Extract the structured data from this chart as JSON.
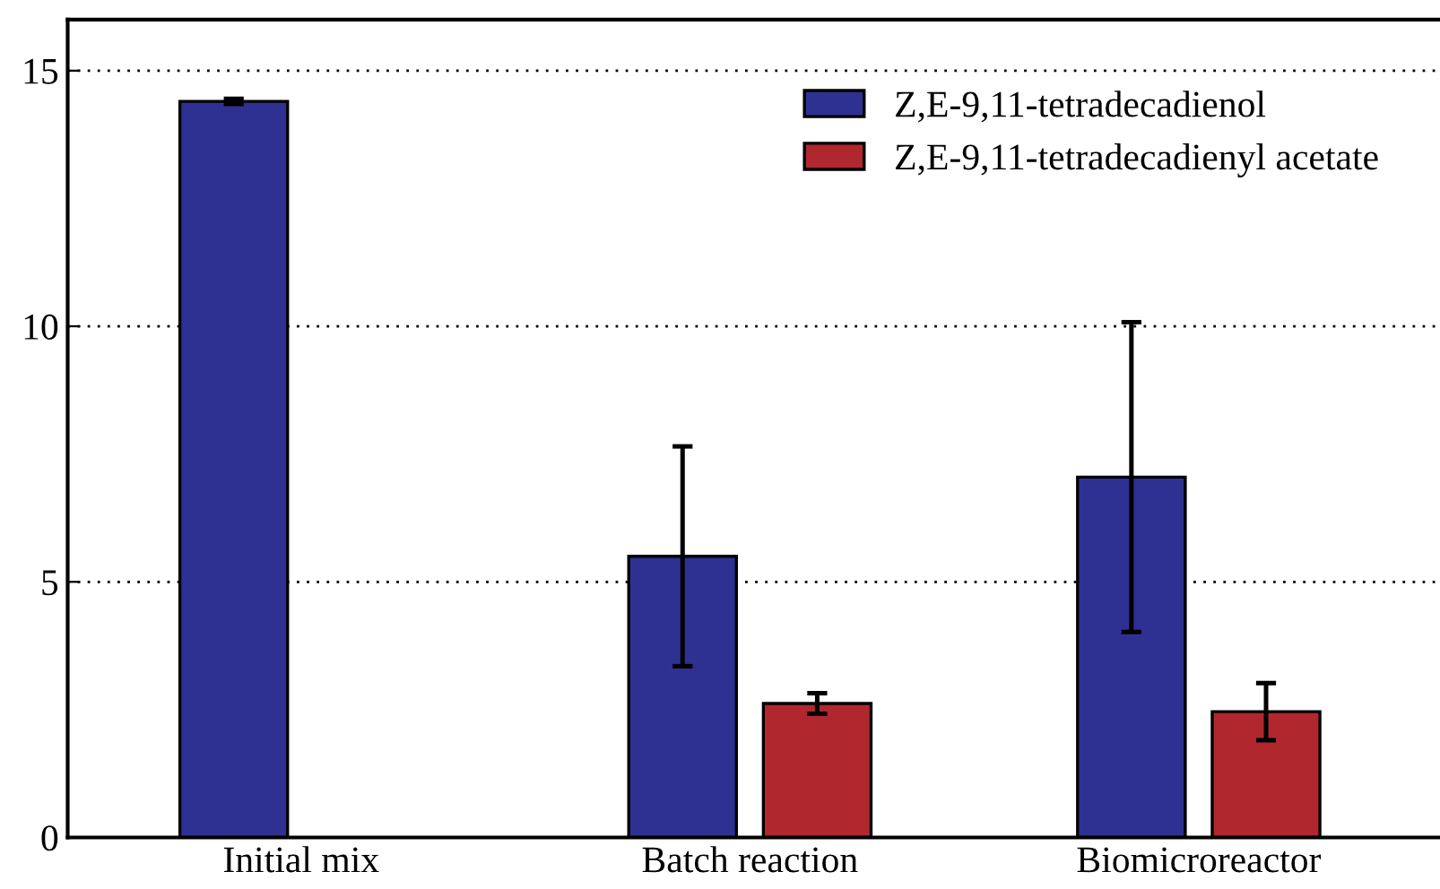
{
  "chart_data": {
    "type": "bar",
    "categories": [
      "Initial mix",
      "Batch reaction",
      "Biomicroreactor"
    ],
    "series": [
      {
        "name": "Z,E-9,11-tetradecadienol",
        "color": "#2e3192",
        "values": [
          14.4,
          5.5,
          7.05
        ],
        "errors": [
          0.05,
          2.15,
          3.03
        ]
      },
      {
        "name": "Z,E-9,11-tetradecadienyl acetate",
        "color": "#b0282e",
        "values": [
          null,
          2.62,
          2.46
        ],
        "errors": [
          null,
          0.2,
          0.56
        ]
      }
    ],
    "ylim": [
      0,
      16
    ],
    "yticks": [
      0,
      5,
      10,
      15
    ],
    "grid": "y",
    "legend": "top right"
  }
}
